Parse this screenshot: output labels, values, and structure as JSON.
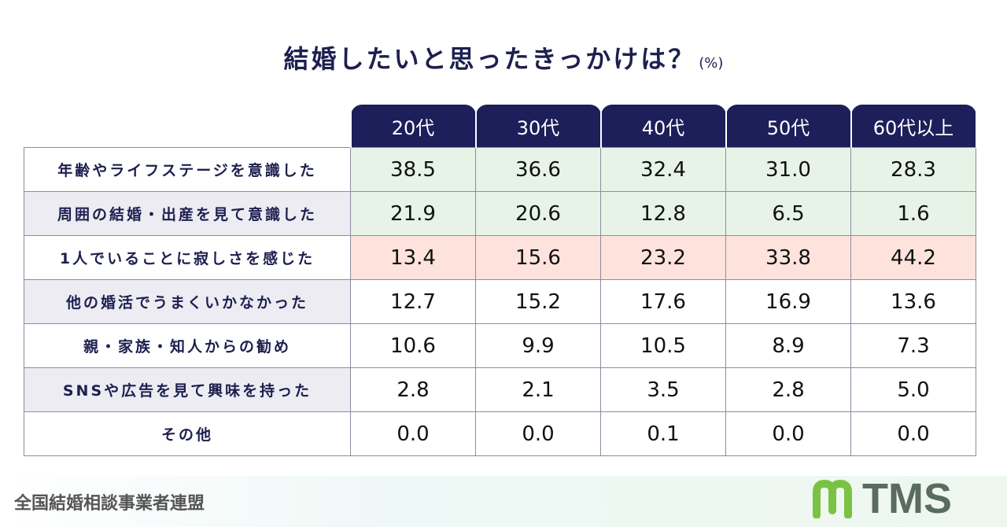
{
  "title": "結婚したいと思ったきっかけは？",
  "unit": "(%)",
  "chart_data": {
    "type": "table",
    "columns": [
      "20代",
      "30代",
      "40代",
      "50代",
      "60代以上"
    ],
    "rows": [
      {
        "label": "年齢やライフステージを意識した",
        "values": [
          "38.5",
          "36.6",
          "32.4",
          "31.0",
          "28.3"
        ],
        "highlight": "#e6f3e6"
      },
      {
        "label": "周囲の結婚・出産を見て意識した",
        "values": [
          "21.9",
          "20.6",
          "12.8",
          "6.5",
          "1.6"
        ],
        "highlight": "#e6f3e6"
      },
      {
        "label": "1人でいることに寂しさを感じた",
        "values": [
          "13.4",
          "15.6",
          "23.2",
          "33.8",
          "44.2"
        ],
        "highlight": "#fde3dc"
      },
      {
        "label": "他の婚活でうまくいかなかった",
        "values": [
          "12.7",
          "15.2",
          "17.6",
          "16.9",
          "13.6"
        ]
      },
      {
        "label": "親・家族・知人からの勧め",
        "values": [
          "10.6",
          "9.9",
          "10.5",
          "8.9",
          "7.3"
        ]
      },
      {
        "label": "SNSや広告を見て興味を持った",
        "values": [
          "2.8",
          "2.1",
          "3.5",
          "2.8",
          "5.0"
        ]
      },
      {
        "label": "その他",
        "values": [
          "0.0",
          "0.0",
          "0.1",
          "0.0",
          "0.0"
        ]
      }
    ]
  },
  "footer": {
    "organization": "全国結婚相談事業者連盟",
    "logo_text": "TMS"
  },
  "colors": {
    "header": "#1c1f5a",
    "green": "#e6f3e6",
    "pink": "#fde3dc",
    "logo_green": "#7cc242"
  }
}
